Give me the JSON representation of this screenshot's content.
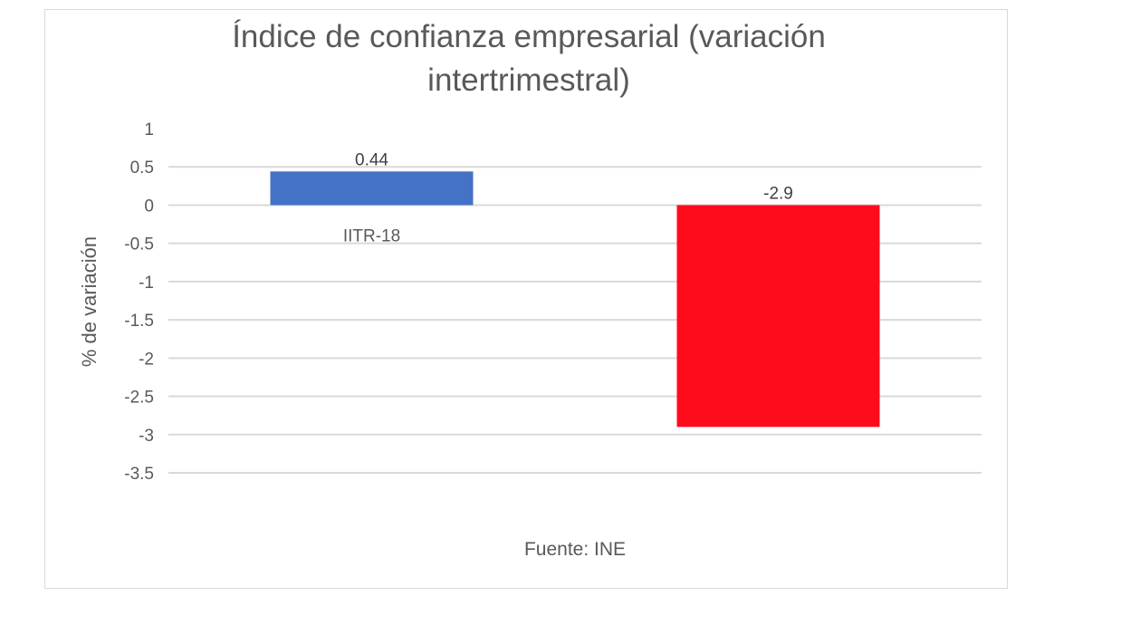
{
  "chart_data": {
    "type": "bar",
    "title": "Índice de confianza empresarial (variación intertrimestral)",
    "xlabel": "",
    "ylabel": "% de variación",
    "ylim": [
      -3.5,
      1
    ],
    "yticks": [
      1,
      0.5,
      0,
      -0.5,
      -1,
      -1.5,
      -2,
      -2.5,
      -3,
      -3.5
    ],
    "ytick_labels": [
      "1",
      "0.5",
      "0",
      "-0.5",
      "-1",
      "-1.5",
      "-2",
      "-2.5",
      "-3",
      "-3.5"
    ],
    "categories": [
      "IITR-18",
      ""
    ],
    "values": [
      0.44,
      -2.9
    ],
    "data_labels": [
      "0.44",
      "-2.9"
    ],
    "colors": [
      "#4472c4",
      "#fe0c1c"
    ],
    "grid": true,
    "gridline_color": "#d9d9d9",
    "legend": "none",
    "annotation": "Fuente: INE"
  }
}
